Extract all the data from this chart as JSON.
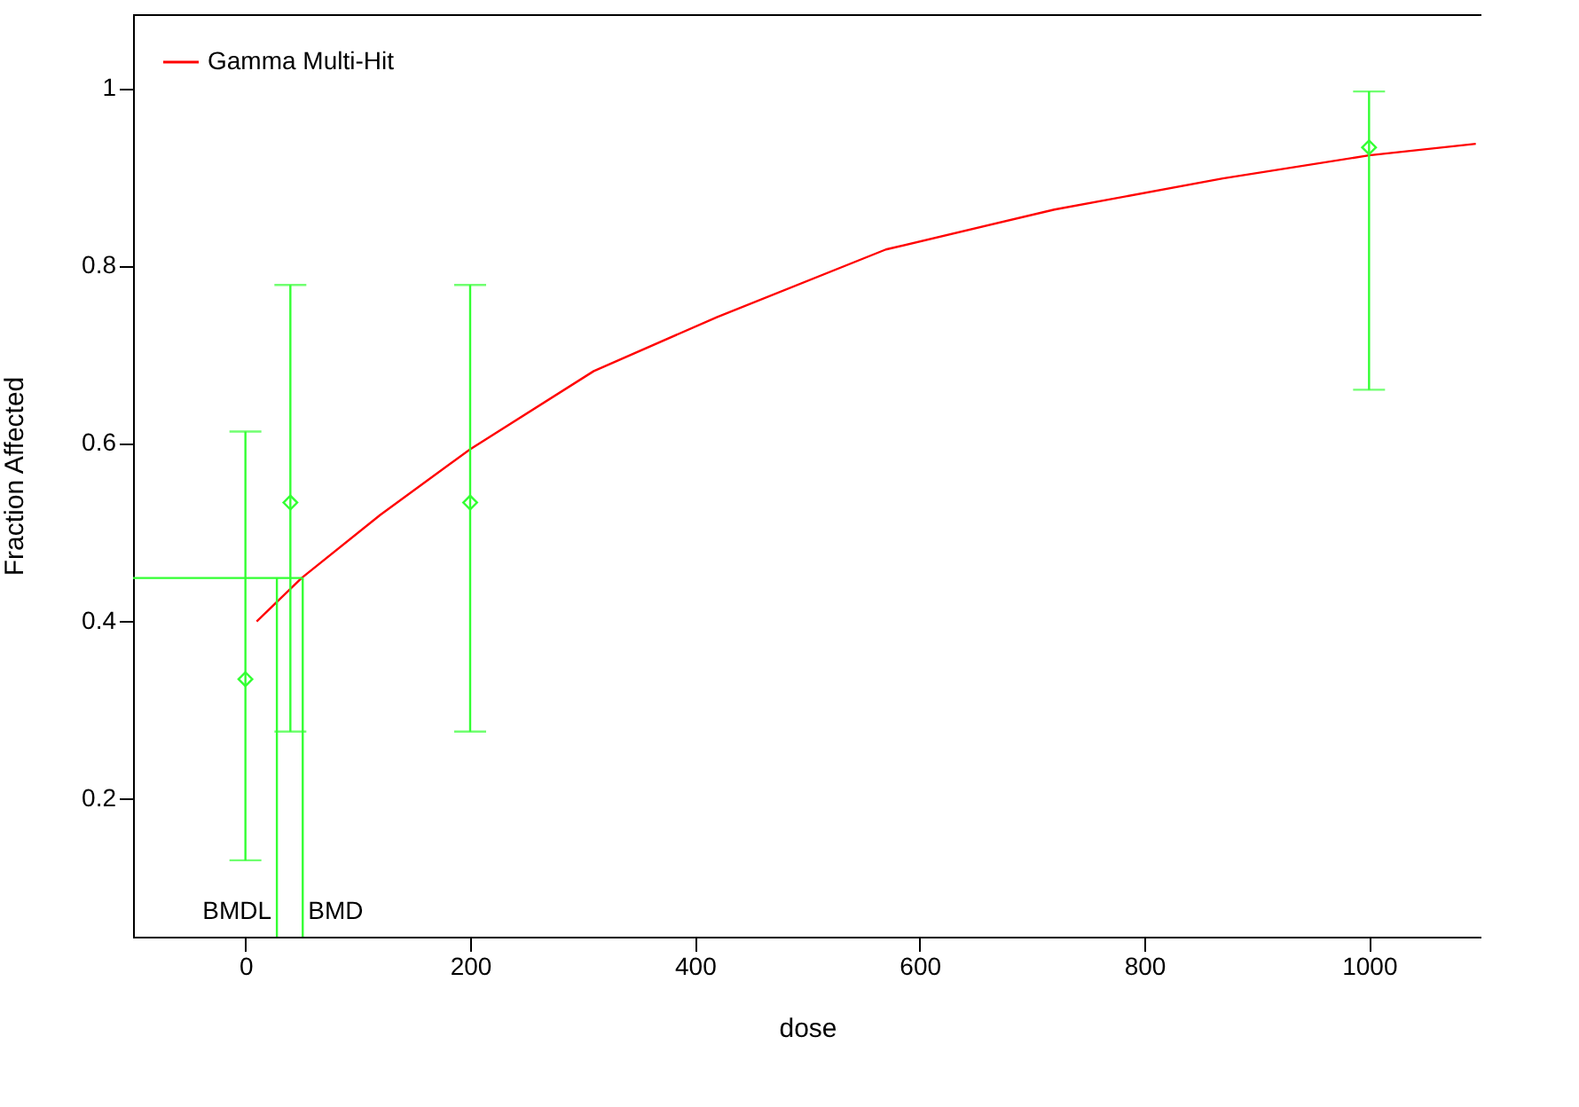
{
  "chart_data": {
    "type": "scatter",
    "xlabel": "dose",
    "ylabel": "Fraction Affected",
    "xlim": [
      -100,
      1100
    ],
    "ylim": [
      0.044,
      1.083
    ],
    "xticks": [
      0,
      200,
      400,
      600,
      800,
      1000
    ],
    "yticks": [
      0.2,
      0.4,
      0.6,
      0.8,
      1
    ],
    "grid": false,
    "legend": "top left",
    "marker": "diamond",
    "series": [
      {
        "type": "line",
        "name": "Gamma Multi-Hit",
        "color": "#ff0000",
        "line_style": "solid",
        "marker": "none",
        "x": [
          10,
          50,
          120,
          200,
          310,
          420,
          570,
          720,
          870,
          1000,
          1095
        ],
        "values": [
          0.399,
          0.448,
          0.519,
          0.593,
          0.681,
          0.742,
          0.818,
          0.863,
          0.898,
          0.924,
          0.937
        ]
      },
      {
        "color": "#33ff33",
        "x": [
          0,
          40,
          200,
          1000
        ],
        "values": [
          0.334,
          0.533,
          0.533,
          0.933
        ],
        "errors": [
          [
            0.13,
            0.613
          ],
          [
            0.275,
            0.778
          ],
          [
            0.275,
            0.778
          ],
          [
            0.66,
            0.996
          ]
        ]
      },
      {
        "type": "line",
        "color": "#33ff33",
        "marker": "none",
        "x": [
          -100,
          51
        ],
        "values": [
          0.448,
          0.448
        ]
      },
      {
        "type": "line",
        "color": "#33ff33",
        "marker": "none",
        "x": [
          28,
          28
        ],
        "values": [
          0.448,
          0.044
        ]
      },
      {
        "type": "line",
        "color": "#33ff33",
        "marker": "none",
        "x": [
          51,
          51
        ],
        "values": [
          0.448,
          0.044
        ]
      }
    ],
    "annotations": [
      {
        "text": "BMDL",
        "x": 28,
        "y": 0.072
      },
      {
        "text": "BMD",
        "x": 51,
        "y": 0.072
      }
    ]
  }
}
